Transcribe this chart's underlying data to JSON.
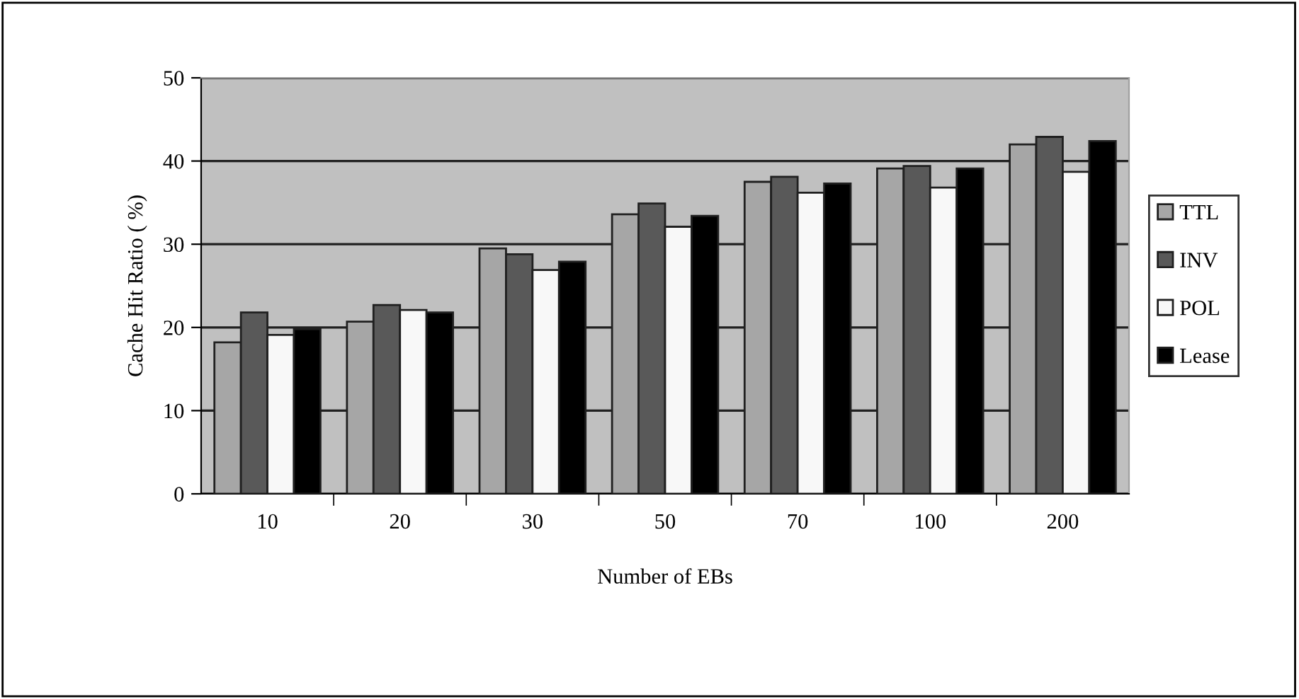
{
  "chart_data": {
    "type": "bar",
    "xlabel": "Number of EBs",
    "ylabel": "Cache Hit Ratio ( %)",
    "categories": [
      "10",
      "20",
      "30",
      "50",
      "70",
      "100",
      "200"
    ],
    "series": [
      {
        "name": "TTL",
        "color": "#a6a6a6",
        "values": [
          18.2,
          20.7,
          29.5,
          33.6,
          37.5,
          39.1,
          42.0
        ]
      },
      {
        "name": "INV",
        "color": "#595959",
        "values": [
          21.8,
          22.7,
          28.8,
          34.9,
          38.1,
          39.4,
          42.9
        ]
      },
      {
        "name": "POL",
        "color": "#f8f8f8",
        "values": [
          19.1,
          22.1,
          26.9,
          32.1,
          36.2,
          36.8,
          38.7
        ]
      },
      {
        "name": "Lease",
        "color": "#000000",
        "values": [
          19.8,
          21.8,
          27.9,
          33.4,
          37.3,
          39.1,
          42.4
        ]
      }
    ],
    "ylim": [
      0,
      50
    ],
    "yticks": [
      0,
      10,
      20,
      30,
      40,
      50
    ],
    "grid": "y",
    "legend": "right"
  }
}
